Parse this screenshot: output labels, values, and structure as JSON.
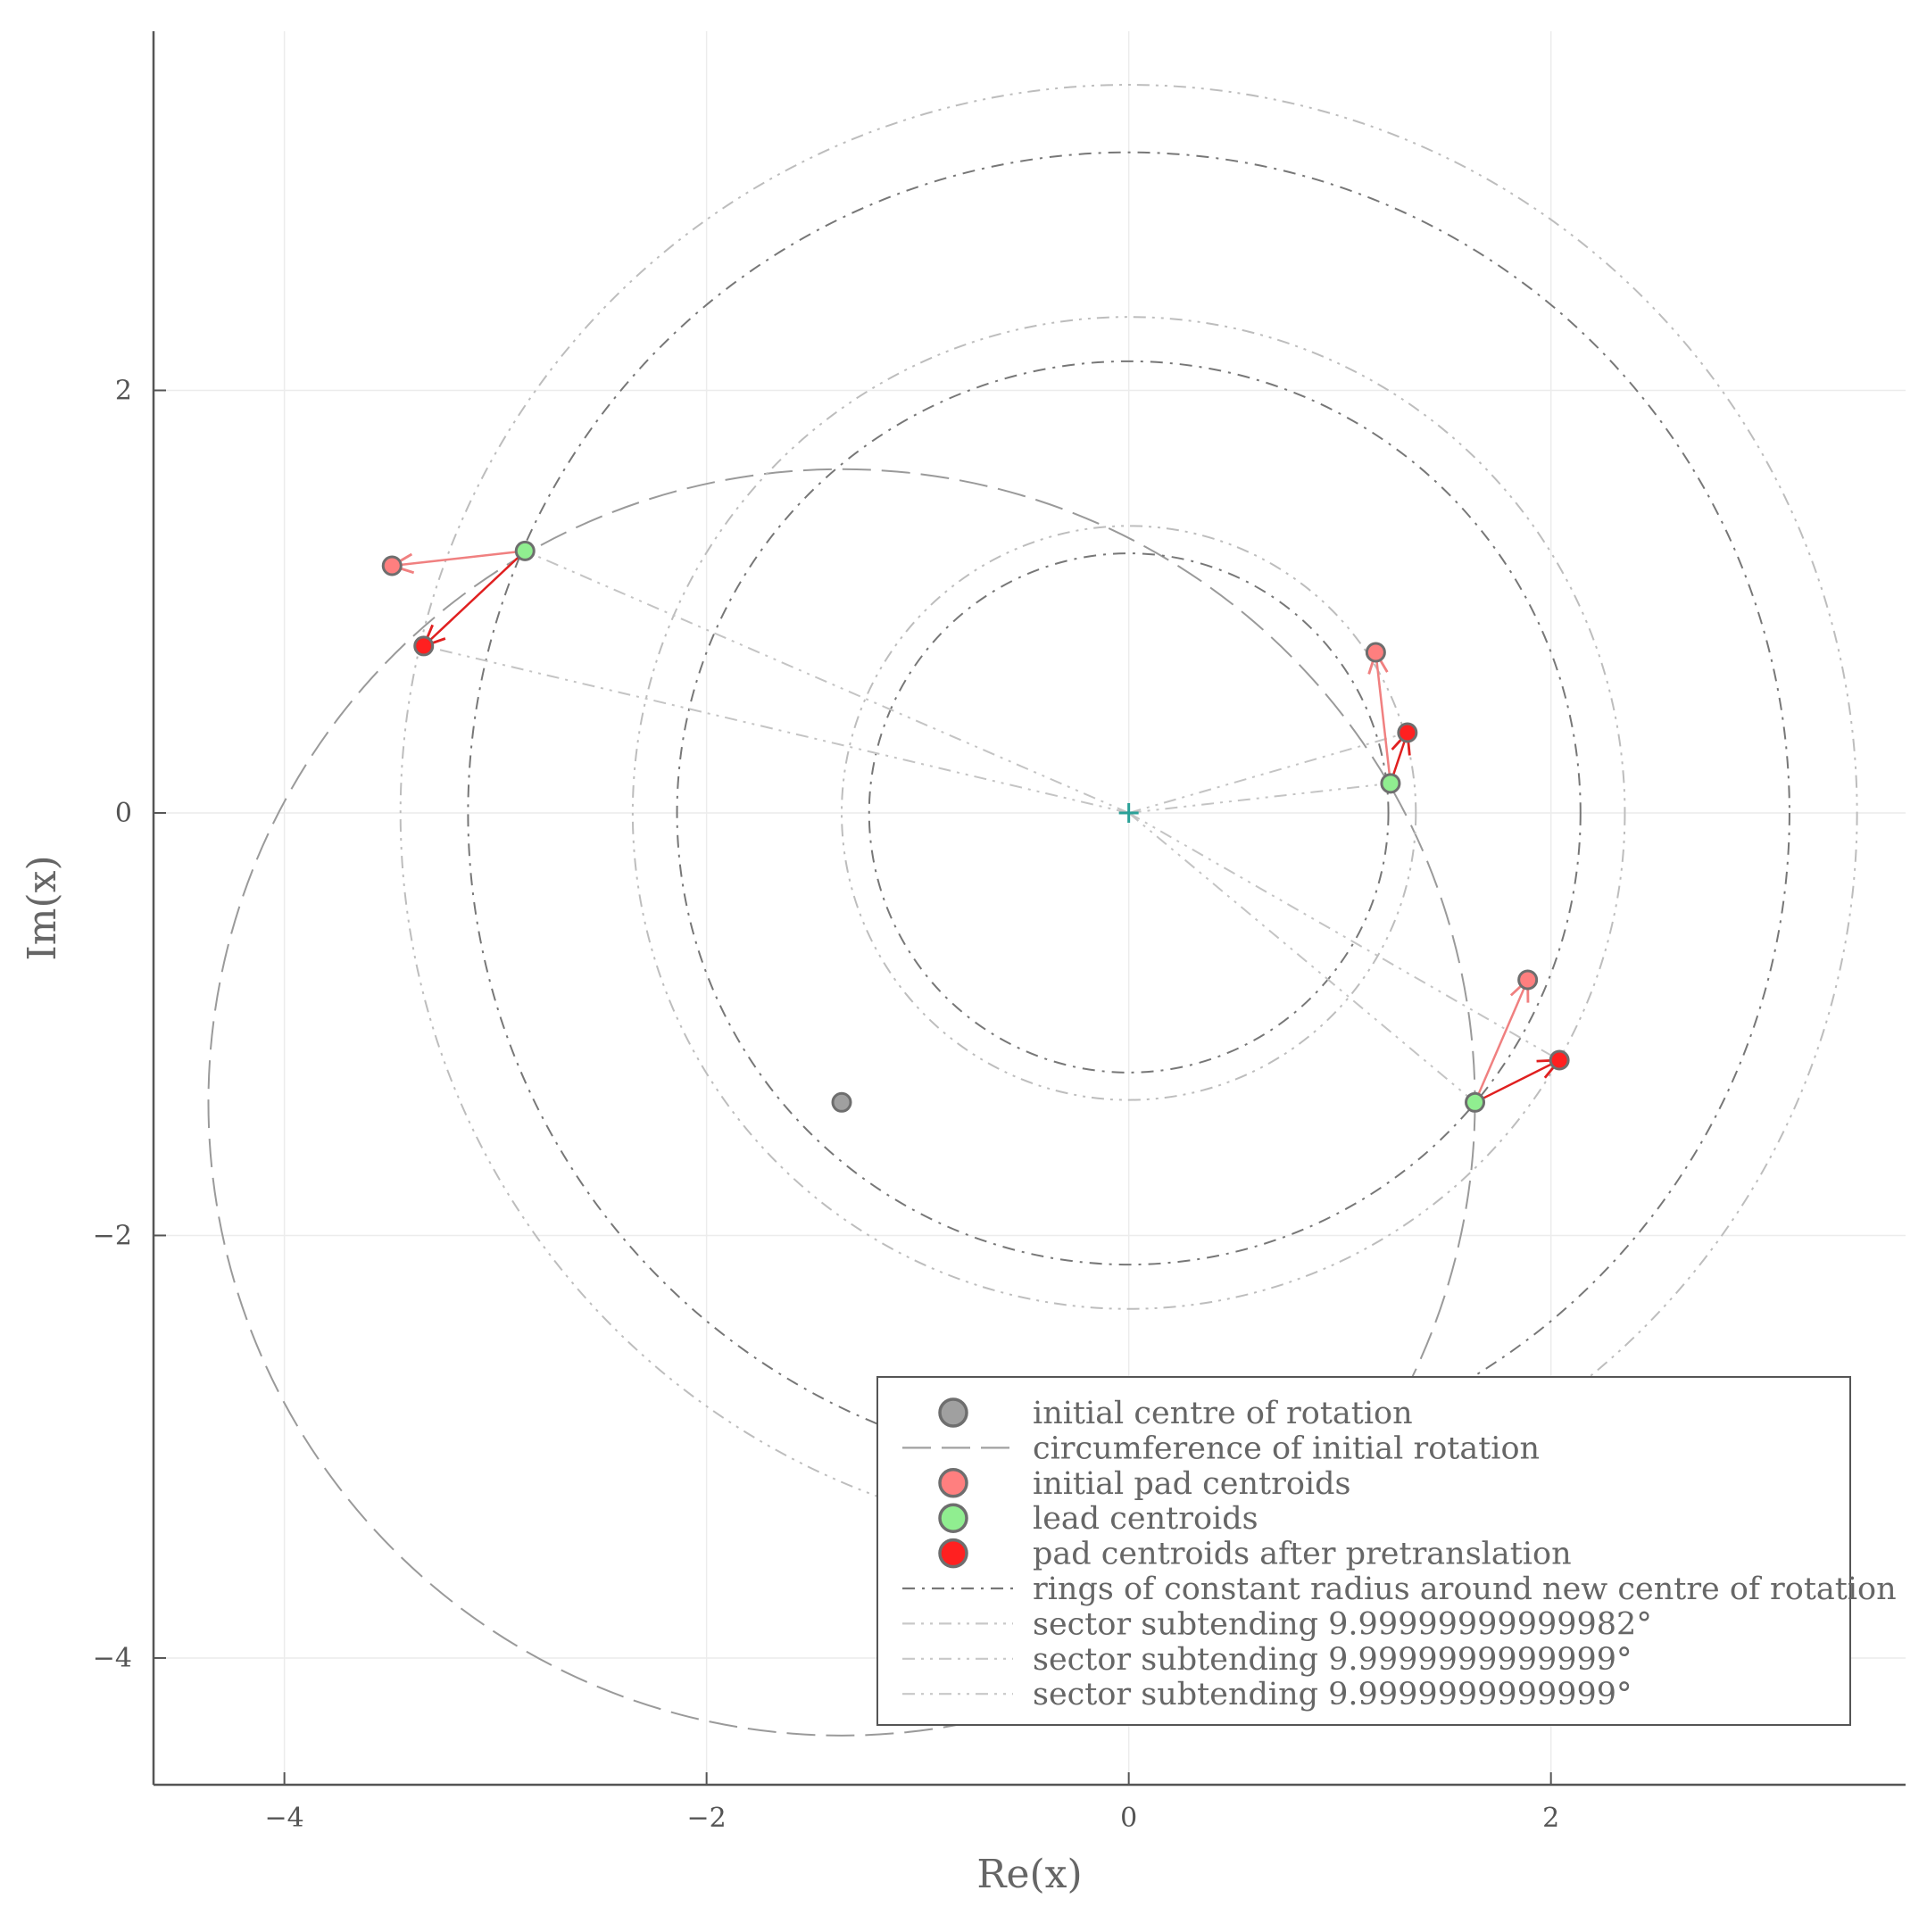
{
  "chart_data": {
    "type": "scatter",
    "title": "",
    "xlabel": "Re(x)",
    "ylabel": "Im(x)",
    "xlim": [
      -4.62,
      3.68
    ],
    "ylim": [
      -4.6,
      3.7
    ],
    "grid": true,
    "legend_position": "bottom-right",
    "x_ticks": [
      {
        "value": -4,
        "label": "−4"
      },
      {
        "value": -2,
        "label": "−2"
      },
      {
        "value": 0,
        "label": "0"
      },
      {
        "value": 2,
        "label": "2"
      }
    ],
    "y_ticks": [
      {
        "value": -4,
        "label": "−4"
      },
      {
        "value": -2,
        "label": "−2"
      },
      {
        "value": 0,
        "label": "0"
      },
      {
        "value": 2,
        "label": "2"
      }
    ],
    "new_centre": {
      "x": 0,
      "y": 0,
      "color": "#2aa198"
    },
    "initial_centre": {
      "x": -1.36,
      "y": -1.37
    },
    "initial_rotation_circle": {
      "cx": -1.36,
      "cy": -1.37,
      "r": 3.0
    },
    "rings": [
      {
        "r": 1.23,
        "color": "#777777"
      },
      {
        "r": 2.14,
        "color": "#777777"
      },
      {
        "r": 3.13,
        "color": "#777777"
      },
      {
        "r": 1.36,
        "color": "#bdbdbd"
      },
      {
        "r": 2.35,
        "color": "#bdbdbd"
      },
      {
        "r": 3.45,
        "color": "#bdbdbd"
      }
    ],
    "series": [
      {
        "name": "initial pad centroids",
        "color": "#ff7f7f",
        "points": [
          [
            -3.49,
            1.17
          ],
          [
            1.17,
            0.76
          ],
          [
            1.89,
            -0.79
          ]
        ]
      },
      {
        "name": "lead centroids",
        "color": "#90ee90",
        "points": [
          [
            -2.86,
            1.24
          ],
          [
            1.24,
            0.14
          ],
          [
            1.64,
            -1.37
          ]
        ]
      },
      {
        "name": "pad centroids after pretranslation",
        "color": "#ff2020",
        "points": [
          [
            -3.34,
            0.79
          ],
          [
            1.32,
            0.38
          ],
          [
            2.04,
            -1.17
          ]
        ]
      }
    ],
    "sector_lines": [
      [
        [
          0,
          0
        ],
        [
          -2.86,
          1.24
        ]
      ],
      [
        [
          0,
          0
        ],
        [
          -3.34,
          0.79
        ]
      ],
      [
        [
          0,
          0
        ],
        [
          1.24,
          0.14
        ]
      ],
      [
        [
          0,
          0
        ],
        [
          1.32,
          0.38
        ]
      ],
      [
        [
          0,
          0
        ],
        [
          1.64,
          -1.37
        ]
      ],
      [
        [
          0,
          0
        ],
        [
          2.04,
          -1.17
        ]
      ]
    ],
    "arrows_initial_to_lead": [
      {
        "from": [
          -2.86,
          1.24
        ],
        "to": [
          -3.49,
          1.17
        ]
      },
      {
        "from": [
          1.24,
          0.14
        ],
        "to": [
          1.17,
          0.76
        ]
      },
      {
        "from": [
          1.64,
          -1.37
        ],
        "to": [
          1.89,
          -0.79
        ]
      }
    ],
    "arrows_pretranslation": [
      {
        "from": [
          -2.86,
          1.24
        ],
        "to": [
          -3.34,
          0.79
        ]
      },
      {
        "from": [
          1.24,
          0.14
        ],
        "to": [
          1.32,
          0.38
        ]
      },
      {
        "from": [
          1.64,
          -1.37
        ],
        "to": [
          2.04,
          -1.17
        ]
      }
    ],
    "legend": [
      {
        "label": "initial centre of rotation",
        "kind": "marker",
        "color": "#a0a0a0"
      },
      {
        "label": "circumference of initial rotation",
        "kind": "dash",
        "color": "#a0a0a0"
      },
      {
        "label": "initial pad centroids",
        "kind": "marker",
        "color": "#ff7f7f"
      },
      {
        "label": "lead centroids",
        "kind": "marker",
        "color": "#90ee90"
      },
      {
        "label": "pad centroids after pretranslation",
        "kind": "marker",
        "color": "#ff2020"
      },
      {
        "label": "rings of constant radius around new centre of rotation",
        "kind": "dashdot",
        "color": "#777777"
      },
      {
        "label": "sector subtending 9.99999999999982°",
        "kind": "dashdotdot",
        "color": "#c8c8c8"
      },
      {
        "label": "sector subtending 9.9999999999999°",
        "kind": "dashdotdot",
        "color": "#c8c8c8"
      },
      {
        "label": "sector subtending 9.9999999999999°",
        "kind": "dashdotdot",
        "color": "#c8c8c8"
      }
    ]
  }
}
